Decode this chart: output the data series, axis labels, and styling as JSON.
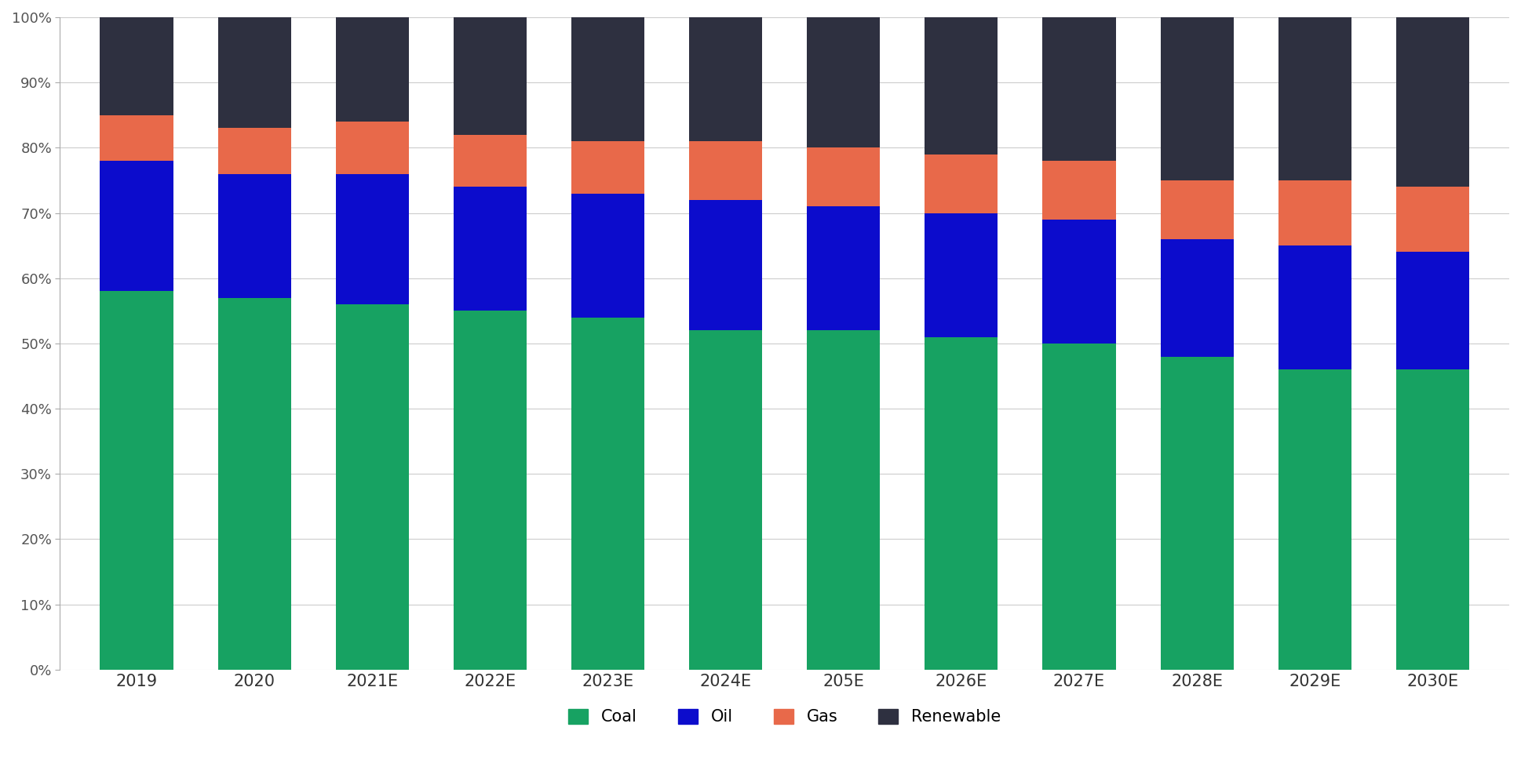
{
  "categories": [
    "2019",
    "2020",
    "2021E",
    "2022E",
    "2023E",
    "2024E",
    "205E",
    "2026E",
    "2027E",
    "2028E",
    "2029E",
    "2030E"
  ],
  "coal": [
    58,
    57,
    56,
    55,
    54,
    52,
    52,
    51,
    50,
    48,
    46,
    46
  ],
  "oil": [
    20,
    19,
    20,
    19,
    19,
    20,
    19,
    19,
    19,
    18,
    19,
    18
  ],
  "gas": [
    7,
    7,
    8,
    8,
    8,
    9,
    9,
    9,
    9,
    9,
    10,
    10
  ],
  "renewable": [
    15,
    17,
    16,
    18,
    19,
    19,
    20,
    21,
    22,
    25,
    25,
    26
  ],
  "colors": {
    "coal": "#17a262",
    "oil": "#0c0ccc",
    "gas": "#e8694a",
    "renewable": "#2e3040"
  },
  "legend_labels": [
    "Coal",
    "Oil",
    "Gas",
    "Renewable"
  ],
  "background_color": "#ffffff",
  "bar_width": 0.62,
  "figsize": [
    19.38,
    9.92
  ],
  "dpi": 100
}
